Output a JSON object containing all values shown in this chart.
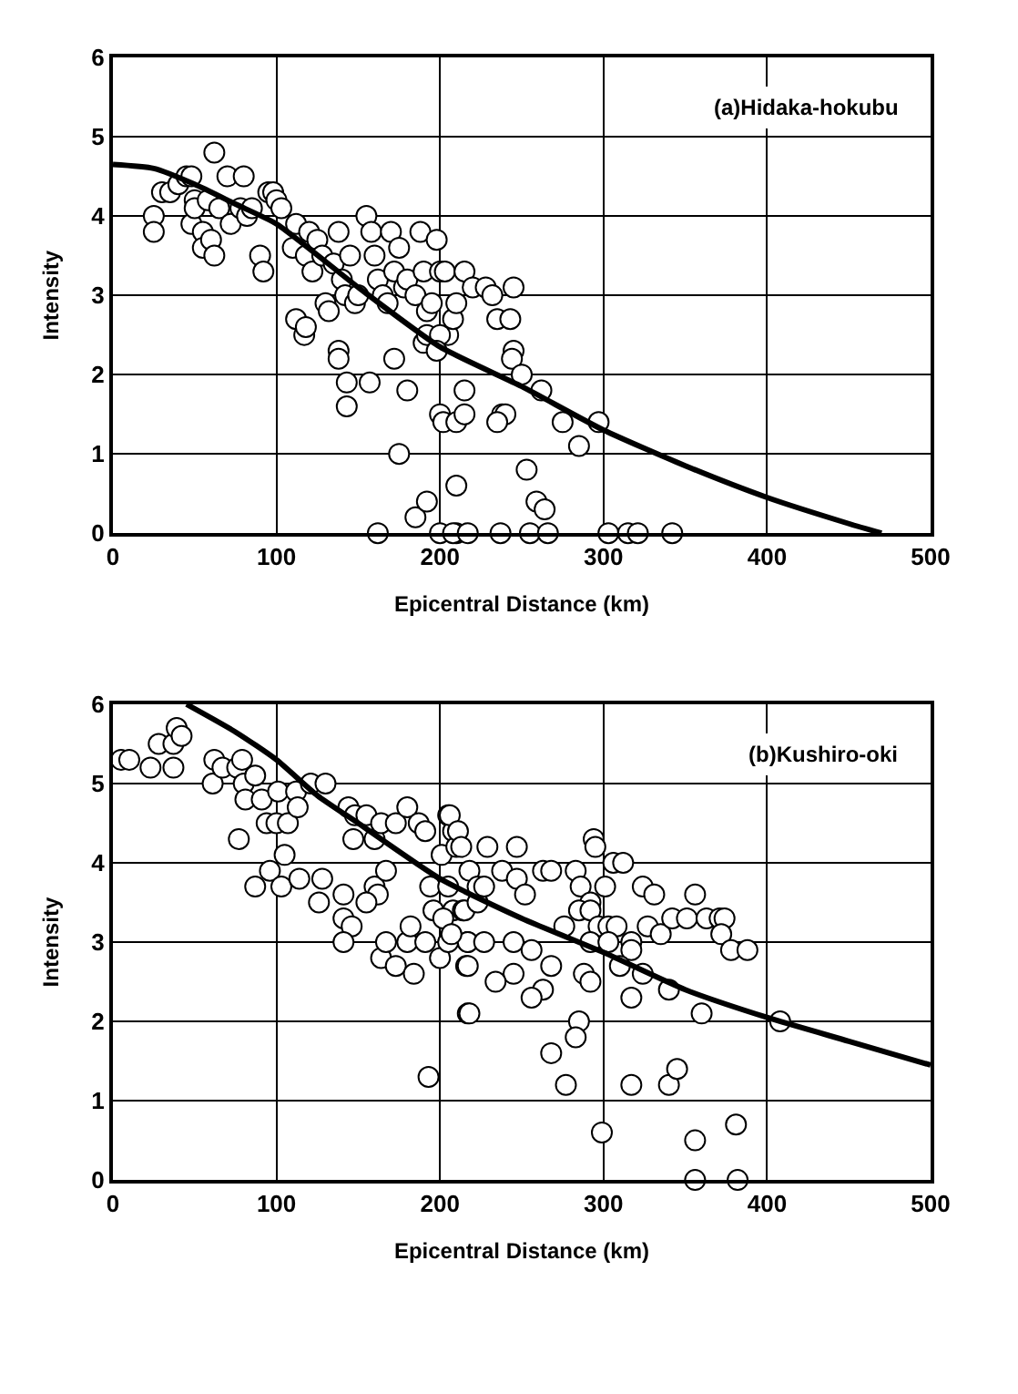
{
  "chart_data": [
    {
      "type": "scatter",
      "title": "(a)Hidaka-hokubu",
      "xlabel": "Epicentral Distance (km)",
      "ylabel": "Intensity",
      "xlim": [
        0,
        500
      ],
      "xticks": [
        0,
        100,
        200,
        300,
        400,
        500
      ],
      "ylim": [
        0,
        6
      ],
      "yticks": [
        0,
        1,
        2,
        3,
        4,
        5,
        6
      ],
      "grid": true,
      "marker": "circle",
      "series": [
        {
          "color": "#ffffff",
          "x": [
            25,
            25,
            30,
            35,
            40,
            45,
            48,
            50,
            48,
            50,
            55,
            55,
            58,
            62,
            60,
            62,
            65,
            70,
            72,
            80,
            78,
            82,
            85,
            90,
            92,
            95,
            98,
            100,
            103,
            110,
            112,
            118,
            120,
            122,
            125,
            128,
            130,
            132,
            135,
            138,
            140,
            142,
            145,
            148,
            150,
            155,
            158,
            160,
            162,
            165,
            168,
            170,
            172,
            175,
            178,
            180,
            185,
            188,
            190,
            192,
            195,
            198,
            200,
            203,
            205,
            208,
            210,
            215,
            112,
            117,
            118,
            138,
            138,
            143,
            143,
            157,
            172,
            180,
            190,
            192,
            200,
            198,
            175,
            162,
            185,
            192,
            200,
            210,
            210,
            200,
            202,
            210,
            215,
            215,
            220,
            228,
            232,
            235,
            243,
            245,
            244,
            250,
            262,
            245,
            238,
            240,
            235,
            275,
            297,
            285,
            253,
            259,
            264,
            208,
            217,
            237,
            255,
            266,
            303,
            315,
            321,
            342
          ],
          "values": [
            4.0,
            3.8,
            4.3,
            4.3,
            4.4,
            4.5,
            4.5,
            4.2,
            3.9,
            4.1,
            3.8,
            3.6,
            4.2,
            4.8,
            3.7,
            3.5,
            4.1,
            4.5,
            3.9,
            4.5,
            4.1,
            4.0,
            4.1,
            3.5,
            3.3,
            4.3,
            4.3,
            4.2,
            4.1,
            3.6,
            3.9,
            3.5,
            3.8,
            3.3,
            3.7,
            3.5,
            2.9,
            2.8,
            3.4,
            3.8,
            3.2,
            3.0,
            3.5,
            2.9,
            3.0,
            4.0,
            3.8,
            3.5,
            3.2,
            3.0,
            2.9,
            3.8,
            3.3,
            3.6,
            3.1,
            3.2,
            3.0,
            3.8,
            3.3,
            2.8,
            2.9,
            3.7,
            3.3,
            3.3,
            2.5,
            2.7,
            2.9,
            3.3,
            2.7,
            2.5,
            2.6,
            2.3,
            2.2,
            1.9,
            1.6,
            1.9,
            2.2,
            1.8,
            2.4,
            2.5,
            2.5,
            2.3,
            1.0,
            0.0,
            0.2,
            0.4,
            0.0,
            0.0,
            0.6,
            1.5,
            1.4,
            1.4,
            1.5,
            1.8,
            3.1,
            3.1,
            3.0,
            2.7,
            2.7,
            2.3,
            2.2,
            2.0,
            1.8,
            3.1,
            1.5,
            1.5,
            1.4,
            1.4,
            1.4,
            1.1,
            0.8,
            0.4,
            0.3,
            0.0,
            0.0,
            0.0,
            0.0,
            0.0,
            0.0,
            0.0,
            0.0,
            0.0
          ]
        },
        {
          "type": "line",
          "color": "#000000",
          "marker": "none",
          "x": [
            0,
            25,
            50,
            75,
            100,
            150,
            200,
            250,
            300,
            350,
            400,
            450,
            470
          ],
          "values": [
            4.65,
            4.6,
            4.4,
            4.15,
            3.9,
            3.1,
            2.35,
            1.85,
            1.3,
            0.85,
            0.45,
            0.12,
            0.0
          ]
        }
      ]
    },
    {
      "type": "scatter",
      "title": "(b)Kushiro-oki",
      "xlabel": "Epicentral Distance (km)",
      "ylabel": "Intensity",
      "xlim": [
        0,
        500
      ],
      "xticks": [
        0,
        100,
        200,
        300,
        400,
        500
      ],
      "ylim": [
        0,
        6
      ],
      "yticks": [
        0,
        1,
        2,
        3,
        4,
        5,
        6
      ],
      "grid": true,
      "marker": "circle",
      "series": [
        {
          "color": "#ffffff",
          "x": [
            5,
            10,
            23,
            28,
            37,
            39,
            42,
            37,
            62,
            61,
            67,
            76,
            79,
            80,
            87,
            81,
            91,
            94,
            100,
            107,
            101,
            112,
            121,
            130,
            113,
            77,
            105,
            96,
            87,
            103,
            114,
            128,
            126,
            141,
            141,
            146,
            141,
            144,
            148,
            155,
            147,
            160,
            164,
            173,
            180,
            187,
            191,
            160,
            162,
            167,
            155,
            164,
            167,
            173,
            180,
            184,
            182,
            191,
            193,
            194,
            196,
            200,
            201,
            205,
            205,
            208,
            210,
            208,
            214,
            205,
            216,
            217,
            217,
            206,
            211,
            213,
            229,
            247,
            218,
            238,
            247,
            252,
            263,
            268,
            283,
            294,
            295,
            306,
            312,
            286,
            301,
            292,
            285,
            292,
            276,
            297,
            303,
            308,
            324,
            331,
            327,
            335,
            342,
            351,
            356,
            363,
            371,
            374,
            372,
            378,
            388,
            292,
            303,
            317,
            317,
            310,
            324,
            340,
            317,
            360,
            408,
            217,
            227,
            245,
            256,
            268,
            217,
            245,
            234,
            263,
            256,
            218,
            288,
            292,
            285,
            283,
            268,
            277,
            317,
            340,
            345,
            299,
            356,
            381,
            356,
            382,
            202,
            207,
            215,
            223,
            223,
            227
          ],
          "values": [
            5.3,
            5.3,
            5.2,
            5.5,
            5.5,
            5.7,
            5.6,
            5.2,
            5.3,
            5.0,
            5.2,
            5.2,
            5.3,
            5.0,
            5.1,
            4.8,
            4.8,
            4.5,
            4.5,
            4.5,
            4.9,
            4.9,
            5.0,
            5.0,
            4.7,
            4.3,
            4.1,
            3.9,
            3.7,
            3.7,
            3.8,
            3.8,
            3.5,
            3.6,
            3.3,
            3.2,
            3.0,
            4.7,
            4.6,
            4.6,
            4.3,
            4.3,
            4.5,
            4.5,
            4.7,
            4.5,
            4.4,
            3.7,
            3.6,
            3.9,
            3.5,
            2.8,
            3.0,
            2.7,
            3.0,
            2.6,
            3.2,
            3.0,
            1.3,
            3.7,
            3.4,
            2.8,
            4.1,
            4.6,
            3.7,
            4.4,
            4.2,
            3.4,
            3.4,
            3.0,
            2.7,
            2.1,
            3.0,
            4.6,
            4.4,
            4.2,
            4.2,
            4.2,
            3.9,
            3.9,
            3.8,
            3.6,
            3.9,
            3.9,
            3.9,
            4.3,
            4.2,
            4.0,
            4.0,
            3.7,
            3.7,
            3.5,
            3.4,
            3.4,
            3.2,
            3.2,
            3.2,
            3.2,
            3.7,
            3.6,
            3.2,
            3.1,
            3.3,
            3.3,
            3.6,
            3.3,
            3.3,
            3.3,
            3.1,
            2.9,
            2.9,
            3.0,
            3.0,
            3.0,
            2.9,
            2.7,
            2.6,
            2.4,
            2.3,
            2.1,
            2.0,
            3.0,
            3.0,
            3.0,
            2.9,
            2.7,
            2.7,
            2.6,
            2.5,
            2.4,
            2.3,
            2.1,
            2.6,
            2.5,
            2.0,
            1.8,
            1.6,
            1.2,
            1.2,
            1.2,
            1.4,
            0.6,
            0.5,
            0.7,
            0.0,
            0.0,
            3.3,
            3.1,
            3.4,
            3.5,
            3.7,
            3.7
          ]
        },
        {
          "type": "line",
          "color": "#000000",
          "marker": "none",
          "x": [
            45,
            75,
            100,
            125,
            150,
            200,
            250,
            300,
            350,
            400,
            450,
            500
          ],
          "values": [
            6.0,
            5.65,
            5.3,
            4.85,
            4.5,
            3.8,
            3.3,
            2.87,
            2.4,
            2.05,
            1.75,
            1.45
          ]
        }
      ]
    }
  ]
}
